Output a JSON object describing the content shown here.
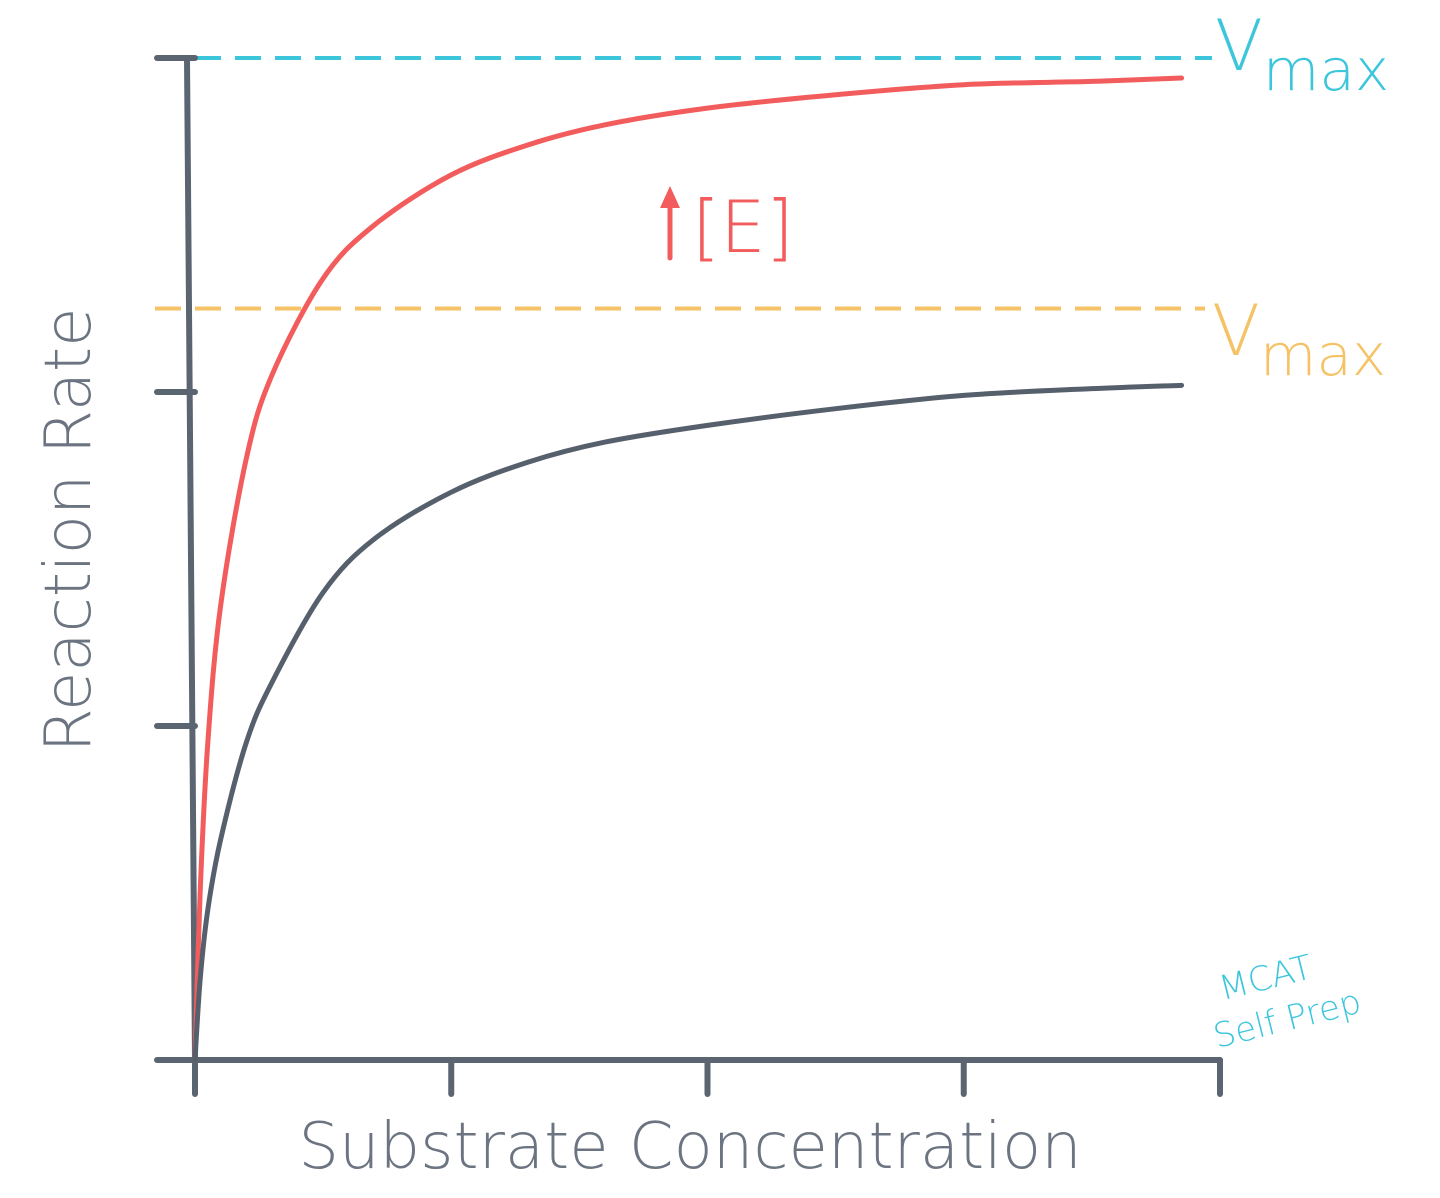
{
  "chart_data": {
    "type": "line",
    "xlabel": "Substrate Concentration",
    "ylabel": "Reaction Rate",
    "xlim": [
      0,
      4
    ],
    "ylim": [
      0,
      3
    ],
    "x_ticks": [
      0,
      1,
      2,
      3,
      4
    ],
    "y_ticks": [
      0,
      1,
      2,
      3
    ],
    "grid": false,
    "series": [
      {
        "name": "",
        "color": "#f25c5c",
        "x": [
          0,
          0.02,
          0.05,
          0.1,
          0.2,
          0.3,
          0.5,
          0.7,
          1.0,
          1.3,
          1.6,
          2.0,
          2.5,
          3.0,
          3.5,
          3.85
        ],
        "y": [
          0,
          0.5,
          0.95,
          1.36,
          1.8,
          2.05,
          2.34,
          2.5,
          2.65,
          2.74,
          2.8,
          2.85,
          2.89,
          2.92,
          2.93,
          2.94
        ]
      },
      {
        "name": "",
        "color": "#56606c",
        "x": [
          0,
          0.02,
          0.05,
          0.1,
          0.2,
          0.3,
          0.5,
          0.7,
          1.0,
          1.3,
          1.6,
          2.0,
          2.5,
          3.0,
          3.5,
          3.85
        ],
        "y": [
          0,
          0.24,
          0.45,
          0.66,
          0.95,
          1.13,
          1.4,
          1.56,
          1.7,
          1.79,
          1.85,
          1.9,
          1.95,
          1.99,
          2.01,
          2.02
        ]
      }
    ],
    "reference_lines": [
      {
        "y": 3,
        "color": "#3cc6dc",
        "label_main": "V",
        "label_sub": "max"
      },
      {
        "y": 2.25,
        "color": "#f5c266",
        "label_main": "V",
        "label_sub": "max"
      }
    ],
    "annotations": [
      {
        "text": "[E]",
        "color": "#f25c5c",
        "arrow": "up"
      },
      {
        "lines": [
          "MCAT",
          "Self Prep"
        ],
        "color": "#3cc6dc"
      }
    ]
  }
}
